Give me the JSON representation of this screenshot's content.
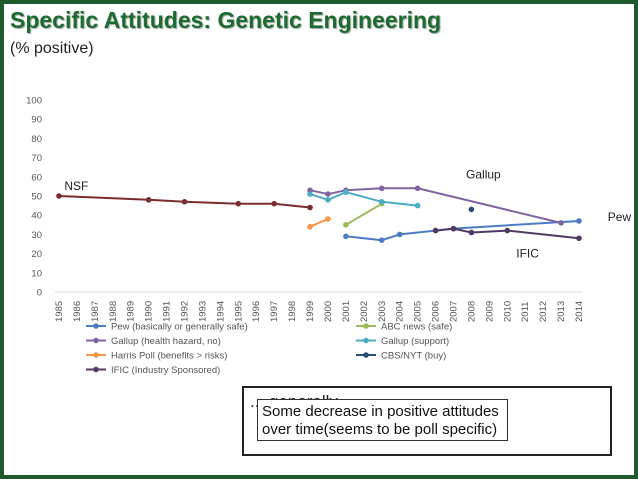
{
  "slide": {
    "title": "Specific Attitudes: Genetic Engineering",
    "subtitle": "(% positive)",
    "note": "Some decrease in positive attitudes over time(seems to be poll specific)",
    "note_ghost": "... generally ..."
  },
  "colors": {
    "frame": "#1f5a2c",
    "title": "#1e6b32"
  },
  "chart_data": {
    "type": "line",
    "title": "Specific Attitudes: Genetic Engineering",
    "ylabel": "% positive",
    "xlim": [
      1985,
      2014
    ],
    "ylim": [
      0,
      100
    ],
    "y_ticks": [
      0,
      10,
      20,
      30,
      40,
      50,
      60,
      70,
      80,
      90,
      100
    ],
    "x_ticks": [
      1985,
      1986,
      1987,
      1988,
      1989,
      1990,
      1991,
      1992,
      1993,
      1994,
      1995,
      1996,
      1997,
      1998,
      1999,
      2000,
      2001,
      2002,
      2003,
      2004,
      2005,
      2006,
      2007,
      2008,
      2009,
      2010,
      2011,
      2012,
      2013,
      2014
    ],
    "grid": false,
    "legend_position": "bottom",
    "series": [
      {
        "name": "Pew (basically or generally safe)",
        "color": "#4a7cc3",
        "x": [
          2001,
          2003,
          2004,
          2006,
          2007,
          2014
        ],
        "values": [
          29,
          27,
          30,
          32,
          33,
          37
        ]
      },
      {
        "name": "ABC news (safe)",
        "color": "#9bbb59",
        "x": [
          2001,
          2003
        ],
        "values": [
          35,
          46
        ]
      },
      {
        "name": "Gallup (health hazard, no)",
        "color": "#8064a2",
        "x": [
          1999,
          2000,
          2001,
          2003,
          2005,
          2013
        ],
        "values": [
          53,
          51,
          53,
          54,
          54,
          36
        ]
      },
      {
        "name": "Gallup (support)",
        "color": "#4bacc6",
        "x": [
          1999,
          2000,
          2001,
          2003,
          2005
        ],
        "values": [
          51,
          48,
          52,
          47,
          45
        ]
      },
      {
        "name": "Harris Poll (benefits > risks)",
        "color": "#f79646",
        "x": [
          1999,
          2000
        ],
        "values": [
          34,
          38
        ]
      },
      {
        "name": "CBS/NYT (buy)",
        "color": "#2c4d75",
        "x": [
          2008
        ],
        "values": [
          43
        ]
      },
      {
        "name": "IFIC (Industry Sponsored)",
        "color": "#4f3a63",
        "x": [
          2006,
          2007,
          2008,
          2010,
          2014
        ],
        "values": [
          32,
          33,
          31,
          32,
          28
        ]
      },
      {
        "name": "NSF",
        "color": "#7b2c2c",
        "x": [
          1985,
          1990,
          1992,
          1995,
          1997,
          1999
        ],
        "values": [
          50,
          48,
          47,
          46,
          46,
          44
        ],
        "legend": false
      }
    ],
    "annotations": [
      {
        "text": "NSF",
        "x": 1985.3,
        "y": 53
      },
      {
        "text": "Gallup",
        "x": 2007.7,
        "y": 59
      },
      {
        "text": "Pew",
        "x": 2015.6,
        "y": 37
      },
      {
        "text": "IFIC",
        "x": 2010.5,
        "y": 18
      }
    ]
  }
}
